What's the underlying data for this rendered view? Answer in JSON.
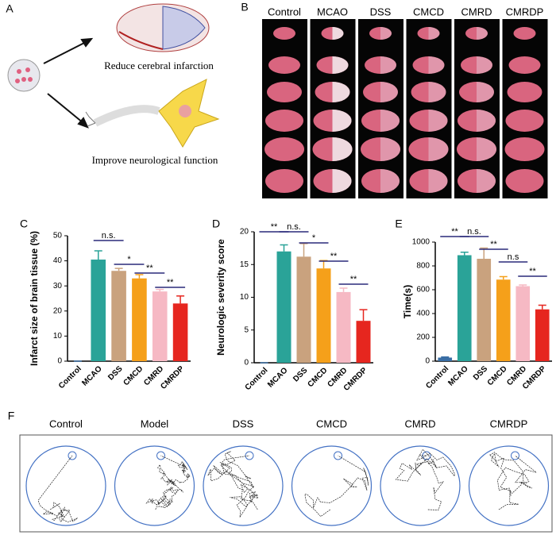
{
  "panel_labels": [
    "A",
    "B",
    "C",
    "D",
    "E",
    "F"
  ],
  "panel_a": {
    "texts": [
      "Reduce cerebral infarction",
      "Improve neurological function"
    ]
  },
  "panel_b": {
    "labels": [
      "Control",
      "MCAO",
      "DSS",
      "CMCD",
      "CMRD",
      "CMRDP"
    ]
  },
  "panel_f": {
    "labels": [
      "Control",
      "Model",
      "DSS",
      "CMCD",
      "CMRD",
      "CMRDP"
    ]
  },
  "chart_data": [
    {
      "type": "bar",
      "y_label": "Infarct size of brain tissue (%)",
      "categories": [
        "Control",
        "MCAO",
        "DSS",
        "CMCD",
        "CMRD",
        "CMRDP"
      ],
      "values": [
        0,
        40.5,
        36,
        33,
        27.8,
        23
      ],
      "errors": [
        0,
        3.5,
        1,
        1.5,
        0.8,
        3
      ],
      "colors": [
        "#3a6ea5",
        "#2aa398",
        "#c9a27e",
        "#f5a01a",
        "#f6b9c4",
        "#e6261f"
      ],
      "ylim": [
        0,
        50
      ],
      "yticks": [
        0,
        10,
        20,
        30,
        40,
        50
      ],
      "annotations": [
        "n.s.",
        "*",
        "**",
        "**"
      ]
    },
    {
      "type": "bar",
      "y_label": "Neurologic severity score",
      "categories": [
        "Control",
        "MCAO",
        "DSS",
        "CMCD",
        "CMRD",
        "CMRDP"
      ],
      "values": [
        0,
        17,
        16.2,
        14.4,
        10.8,
        6.4
      ],
      "errors": [
        0,
        1,
        2,
        1.2,
        0.6,
        1.7
      ],
      "colors": [
        "#3a6ea5",
        "#2aa398",
        "#c9a27e",
        "#f5a01a",
        "#f6b9c4",
        "#e6261f"
      ],
      "ylim": [
        0,
        20
      ],
      "yticks": [
        0,
        5,
        10,
        15,
        20
      ],
      "annotations": [
        "**",
        "n.s.",
        "*",
        "**",
        "**"
      ]
    },
    {
      "type": "bar",
      "y_label": "Time(s)",
      "categories": [
        "Control",
        "MCAO",
        "DSS",
        "CMCD",
        "CMRD",
        "CMRDP"
      ],
      "values": [
        30,
        890,
        860,
        685,
        630,
        435
      ],
      "errors": [
        5,
        25,
        90,
        25,
        10,
        35
      ],
      "colors": [
        "#3a6ea5",
        "#2aa398",
        "#c9a27e",
        "#f5a01a",
        "#f6b9c4",
        "#e6261f"
      ],
      "ylim": [
        0,
        1000
      ],
      "yticks": [
        0,
        200,
        400,
        600,
        800,
        1000
      ],
      "annotations": [
        "**",
        "n.s.",
        "**",
        "n.s",
        "**"
      ]
    }
  ]
}
